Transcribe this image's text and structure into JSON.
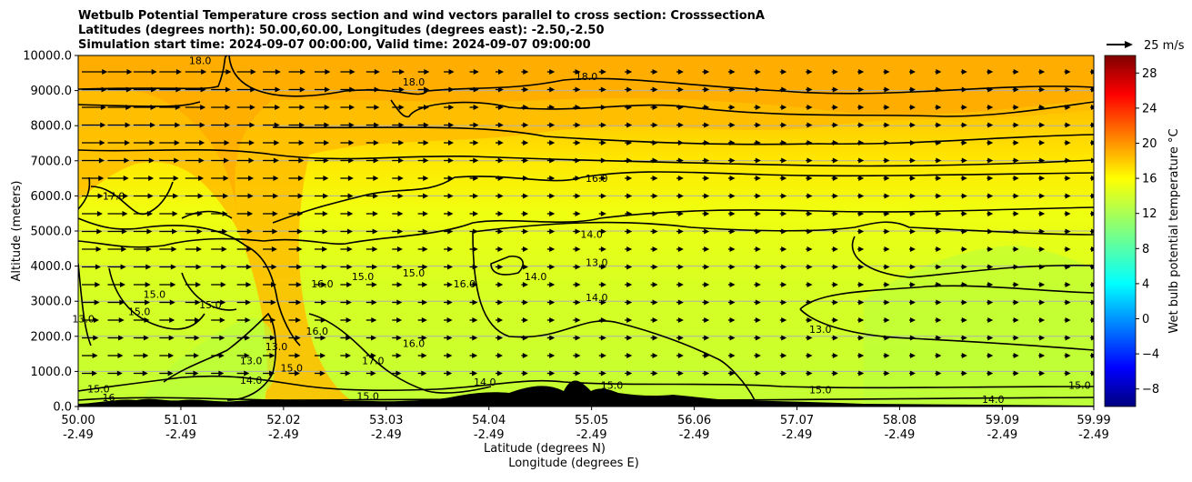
{
  "chart_data": {
    "type": "heatmap",
    "title_lines": [
      "Wetbulb Potential Temperature cross section and wind vectors parallel to cross section: CrosssectionA",
      "Latitudes (degrees north): 50.00,60.00, Longitudes (degrees east): -2.50,-2.50",
      "Simulation start time: 2024-09-07 00:00:00, Valid time: 2024-09-07 09:00:00"
    ],
    "xlabel_lines": [
      "Latitude (degrees N)",
      "Longitude (degrees E)"
    ],
    "ylabel": "Altitude (meters)",
    "ylim": [
      0,
      10000
    ],
    "yticks": [
      "0.0",
      "1000.0",
      "2000.0",
      "3000.0",
      "4000.0",
      "5000.0",
      "6000.0",
      "7000.0",
      "8000.0",
      "9000.0",
      "10000.0"
    ],
    "yticks_values": [
      0,
      1000,
      2000,
      3000,
      4000,
      5000,
      6000,
      7000,
      8000,
      9000,
      10000
    ],
    "xlim": [
      50.0,
      59.99
    ],
    "xticks": [
      {
        "value": 50.0,
        "lat": "50.00",
        "lon": "-2.49"
      },
      {
        "value": 51.01,
        "lat": "51.01",
        "lon": "-2.49"
      },
      {
        "value": 52.02,
        "lat": "52.02",
        "lon": "-2.49"
      },
      {
        "value": 53.03,
        "lat": "53.03",
        "lon": "-2.49"
      },
      {
        "value": 54.04,
        "lat": "54.04",
        "lon": "-2.49"
      },
      {
        "value": 55.05,
        "lat": "55.05",
        "lon": "-2.49"
      },
      {
        "value": 56.06,
        "lat": "56.06",
        "lon": "-2.49"
      },
      {
        "value": 57.07,
        "lat": "57.07",
        "lon": "-2.49"
      },
      {
        "value": 58.08,
        "lat": "58.08",
        "lon": "-2.49"
      },
      {
        "value": 59.09,
        "lat": "59.09",
        "lon": "-2.49"
      },
      {
        "value": 59.99,
        "lat": "59.99",
        "lon": "-2.49"
      }
    ],
    "grid": "horizontal",
    "colorbar": {
      "label": "Wet bulb potential temperature °C",
      "range": [
        -10,
        30
      ],
      "ticks": [
        "−8",
        "−4",
        "0",
        "4",
        "8",
        "12",
        "16",
        "20",
        "24",
        "28"
      ],
      "ticks_values": [
        -8,
        -4,
        0,
        4,
        8,
        12,
        16,
        20,
        24,
        28
      ],
      "colormap": "jet"
    },
    "quiver_key": {
      "label": "25 m/s",
      "speed": 25
    },
    "contour_labels": [
      {
        "text": "18.0",
        "lat": 51.2,
        "alt": 9750
      },
      {
        "text": "18.0",
        "lat": 53.3,
        "alt": 9150
      },
      {
        "text": "18.0",
        "lat": 55.0,
        "alt": 9300
      },
      {
        "text": "16.0",
        "lat": 55.1,
        "alt": 6400
      },
      {
        "text": "17.0",
        "lat": 50.35,
        "alt": 5900
      },
      {
        "text": "14.0",
        "lat": 55.05,
        "alt": 4800
      },
      {
        "text": "13.0",
        "lat": 55.1,
        "alt": 4000
      },
      {
        "text": "14.0",
        "lat": 54.5,
        "alt": 3600
      },
      {
        "text": "16.0",
        "lat": 52.4,
        "alt": 3400
      },
      {
        "text": "15.0",
        "lat": 52.8,
        "alt": 3600
      },
      {
        "text": "15.0",
        "lat": 53.3,
        "alt": 3700
      },
      {
        "text": "16.0",
        "lat": 53.8,
        "alt": 3400
      },
      {
        "text": "15.0",
        "lat": 50.75,
        "alt": 3100
      },
      {
        "text": "15.0",
        "lat": 50.6,
        "alt": 2600
      },
      {
        "text": "15.0",
        "lat": 51.3,
        "alt": 2800
      },
      {
        "text": "14.0",
        "lat": 55.1,
        "alt": 3000
      },
      {
        "text": "16.0",
        "lat": 52.35,
        "alt": 2050
      },
      {
        "text": "16.0",
        "lat": 53.3,
        "alt": 1700
      },
      {
        "text": "13.0",
        "lat": 51.7,
        "alt": 1200
      },
      {
        "text": "13.0",
        "lat": 51.95,
        "alt": 1600
      },
      {
        "text": "15.0",
        "lat": 52.1,
        "alt": 1000
      },
      {
        "text": "14.0",
        "lat": 51.7,
        "alt": 650
      },
      {
        "text": "17.0",
        "lat": 52.9,
        "alt": 1200
      },
      {
        "text": "13.0",
        "lat": 57.3,
        "alt": 2100
      },
      {
        "text": "14.0",
        "lat": 54.0,
        "alt": 600
      },
      {
        "text": "15.0",
        "lat": 52.85,
        "alt": 200
      },
      {
        "text": "15.0",
        "lat": 55.25,
        "alt": 500
      },
      {
        "text": "14.0",
        "lat": 59.0,
        "alt": 100
      },
      {
        "text": "15.0",
        "lat": 59.85,
        "alt": 500
      },
      {
        "text": "15.0",
        "lat": 57.3,
        "alt": 380
      },
      {
        "text": "15.0",
        "lat": 50.2,
        "alt": 400
      },
      {
        "text": "16",
        "lat": 50.3,
        "alt": 150
      },
      {
        "text": "13.0",
        "lat": 50.05,
        "alt": 2400
      }
    ]
  }
}
